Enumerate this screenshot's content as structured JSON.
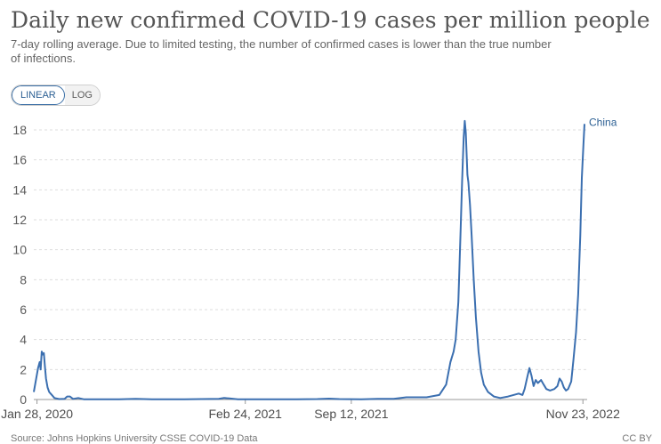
{
  "header": {
    "title": "Daily new confirmed COVID-19 cases per million people",
    "subtitle": "7-day rolling average. Due to limited testing, the number of confirmed cases is lower than the true number of infections."
  },
  "controls": {
    "linear_label": "LINEAR",
    "log_label": "LOG",
    "selected": "LINEAR"
  },
  "footer": {
    "source_text": "Source: Johns Hopkins University CSSE COVID-19 Data",
    "license_text": "CC BY"
  },
  "colors": {
    "line": "#3b6fb0",
    "grid": "#dddddd",
    "label": "#2b5f93"
  },
  "chart_data": {
    "type": "line",
    "title": "Daily new confirmed COVID-19 cases per million people",
    "ylim": [
      0,
      18
    ],
    "yticks": [
      0,
      2,
      4,
      6,
      8,
      10,
      12,
      14,
      16,
      18
    ],
    "grid": true,
    "xlim": [
      "2020-01-22",
      "2022-12-01"
    ],
    "xticks": [
      {
        "date": "2020-01-28",
        "label": "Jan 28, 2020"
      },
      {
        "date": "2021-02-24",
        "label": "Feb 24, 2021"
      },
      {
        "date": "2021-09-12",
        "label": "Sep 12, 2021"
      },
      {
        "date": "2022-11-23",
        "label": "Nov 23, 2022"
      }
    ],
    "series": [
      {
        "name": "China",
        "points": [
          [
            "2020-01-22",
            0.5
          ],
          [
            "2020-01-26",
            1.3
          ],
          [
            "2020-01-30",
            2.1
          ],
          [
            "2020-02-02",
            2.5
          ],
          [
            "2020-02-04",
            2.0
          ],
          [
            "2020-02-06",
            3.2
          ],
          [
            "2020-02-08",
            3.0
          ],
          [
            "2020-02-10",
            3.1
          ],
          [
            "2020-02-12",
            2.2
          ],
          [
            "2020-02-14",
            1.4
          ],
          [
            "2020-02-17",
            0.8
          ],
          [
            "2020-02-20",
            0.5
          ],
          [
            "2020-02-25",
            0.3
          ],
          [
            "2020-03-01",
            0.1
          ],
          [
            "2020-03-10",
            0.03
          ],
          [
            "2020-03-20",
            0.05
          ],
          [
            "2020-03-25",
            0.2
          ],
          [
            "2020-03-30",
            0.2
          ],
          [
            "2020-04-05",
            0.04
          ],
          [
            "2020-04-15",
            0.1
          ],
          [
            "2020-04-25",
            0.02
          ],
          [
            "2020-05-20",
            0.01
          ],
          [
            "2020-07-01",
            0.01
          ],
          [
            "2020-08-01",
            0.05
          ],
          [
            "2020-09-01",
            0.01
          ],
          [
            "2020-11-01",
            0.01
          ],
          [
            "2021-01-05",
            0.05
          ],
          [
            "2021-01-15",
            0.1
          ],
          [
            "2021-01-25",
            0.07
          ],
          [
            "2021-02-10",
            0.02
          ],
          [
            "2021-04-01",
            0.01
          ],
          [
            "2021-06-01",
            0.01
          ],
          [
            "2021-07-10",
            0.03
          ],
          [
            "2021-08-01",
            0.06
          ],
          [
            "2021-08-20",
            0.03
          ],
          [
            "2021-10-01",
            0.01
          ],
          [
            "2021-11-01",
            0.04
          ],
          [
            "2021-12-01",
            0.04
          ],
          [
            "2021-12-25",
            0.15
          ],
          [
            "2022-01-15",
            0.15
          ],
          [
            "2022-02-01",
            0.15
          ],
          [
            "2022-02-25",
            0.3
          ],
          [
            "2022-03-10",
            1.0
          ],
          [
            "2022-03-18",
            2.5
          ],
          [
            "2022-03-24",
            3.2
          ],
          [
            "2022-03-28",
            4.0
          ],
          [
            "2022-04-02",
            6.5
          ],
          [
            "2022-04-06",
            11.0
          ],
          [
            "2022-04-09",
            14.5
          ],
          [
            "2022-04-12",
            17.5
          ],
          [
            "2022-04-14",
            18.6
          ],
          [
            "2022-04-16",
            17.8
          ],
          [
            "2022-04-19",
            15.0
          ],
          [
            "2022-04-21",
            14.5
          ],
          [
            "2022-04-24",
            13.0
          ],
          [
            "2022-04-27",
            11.0
          ],
          [
            "2022-05-01",
            8.0
          ],
          [
            "2022-05-05",
            5.5
          ],
          [
            "2022-05-10",
            3.2
          ],
          [
            "2022-05-15",
            1.8
          ],
          [
            "2022-05-20",
            1.0
          ],
          [
            "2022-05-28",
            0.5
          ],
          [
            "2022-06-08",
            0.2
          ],
          [
            "2022-06-20",
            0.1
          ],
          [
            "2022-07-05",
            0.2
          ],
          [
            "2022-07-15",
            0.3
          ],
          [
            "2022-07-25",
            0.4
          ],
          [
            "2022-08-01",
            0.3
          ],
          [
            "2022-08-05",
            0.7
          ],
          [
            "2022-08-10",
            1.5
          ],
          [
            "2022-08-14",
            2.1
          ],
          [
            "2022-08-18",
            1.6
          ],
          [
            "2022-08-22",
            0.9
          ],
          [
            "2022-08-26",
            1.3
          ],
          [
            "2022-08-30",
            1.1
          ],
          [
            "2022-09-05",
            1.3
          ],
          [
            "2022-09-10",
            1.0
          ],
          [
            "2022-09-15",
            0.7
          ],
          [
            "2022-09-22",
            0.6
          ],
          [
            "2022-09-30",
            0.7
          ],
          [
            "2022-10-06",
            0.9
          ],
          [
            "2022-10-10",
            1.4
          ],
          [
            "2022-10-14",
            1.2
          ],
          [
            "2022-10-18",
            0.8
          ],
          [
            "2022-10-22",
            0.6
          ],
          [
            "2022-10-26",
            0.7
          ],
          [
            "2022-11-01",
            1.2
          ],
          [
            "2022-11-05",
            2.6
          ],
          [
            "2022-11-10",
            4.5
          ],
          [
            "2022-11-14",
            7.0
          ],
          [
            "2022-11-18",
            11.0
          ],
          [
            "2022-11-21",
            14.8
          ],
          [
            "2022-11-24",
            17.0
          ],
          [
            "2022-11-26",
            18.4
          ]
        ]
      }
    ]
  }
}
